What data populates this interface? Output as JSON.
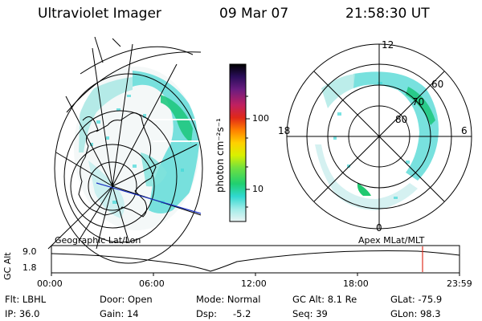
{
  "header": {
    "instrument": "Ultraviolet Imager",
    "date": "09 Mar 07",
    "time": "21:58:30 UT"
  },
  "colorbar": {
    "unit_label": "photon cm⁻²s⁻¹",
    "ticks": [
      "100",
      "10"
    ],
    "colors": [
      "#000000",
      "#1a0a40",
      "#3a1068",
      "#6a1c80",
      "#a0207a",
      "#d02020",
      "#f04010",
      "#ff7a00",
      "#ffb000",
      "#ffe000",
      "#c8f000",
      "#70e040",
      "#20d060",
      "#30d8c0",
      "#40e0e0",
      "#a0ece8",
      "#e0f0f0"
    ]
  },
  "left_panel": {
    "caption": "Geographic Lat/Lon",
    "grid_color": "#000000",
    "aurora_colors": [
      "#40d8d8",
      "#80e4e0",
      "#c0ecec",
      "#20c890"
    ]
  },
  "right_panel": {
    "caption": "Apex MLat/MLT",
    "lat_labels": [
      "60",
      "70",
      "80"
    ],
    "mlt_labels": {
      "top": "12",
      "left": "18",
      "right": "6",
      "bottom": "0"
    }
  },
  "timeline": {
    "axis_label": "GC Alt",
    "y_ticks": [
      "9.0",
      "1.8"
    ],
    "x_ticks": [
      "00:00",
      "06:00",
      "12:00",
      "18:00",
      "23:59"
    ],
    "marker_color": "#e03020",
    "marker_time": "21:58"
  },
  "info": {
    "flt": "Flt: LBHL",
    "ip": "IP: 36.0",
    "door": "Door: Open",
    "gain": "Gain: 14",
    "mode": "Mode: Normal",
    "dsp_label": "Dsp:",
    "dsp_value": "-5.2",
    "gcalt": "GC Alt: 8.1 Re",
    "seq": "Seq: 39",
    "glat": "GLat: -75.9",
    "glon": "GLon: 98.3"
  }
}
